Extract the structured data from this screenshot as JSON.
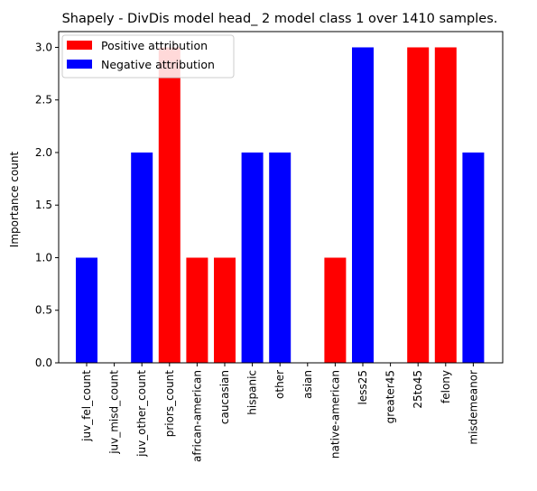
{
  "chart_data": {
    "type": "bar",
    "title": "Shapely - DivDis model head_ 2 model class 1 over 1410 samples.",
    "xlabel": "",
    "ylabel": "Importance count",
    "ylim": [
      0,
      3.15
    ],
    "yticks": [
      "0.0",
      "0.5",
      "1.0",
      "1.5",
      "2.0",
      "2.5",
      "3.0"
    ],
    "categories": [
      "juv_fel_count",
      "juv_misd_count",
      "juv_other_count",
      "priors_count",
      "african-american",
      "caucasian",
      "hispanic",
      "other",
      "asian",
      "native-american",
      "less25",
      "greater45",
      "25to45",
      "felony",
      "misdemeanor"
    ],
    "values": [
      1,
      0,
      2,
      3,
      1,
      1,
      2,
      2,
      0,
      1,
      3,
      0,
      3,
      3,
      2
    ],
    "bar_series": [
      "negative",
      "negative",
      "negative",
      "positive",
      "positive",
      "positive",
      "negative",
      "negative",
      "negative",
      "positive",
      "negative",
      "negative",
      "positive",
      "positive",
      "negative"
    ],
    "series": [
      {
        "key": "positive",
        "name": "Positive attribution",
        "color": "#ff0000"
      },
      {
        "key": "negative",
        "name": "Negative attribution",
        "color": "#0000ff"
      }
    ],
    "legend_position": "top-left",
    "grid": false
  }
}
